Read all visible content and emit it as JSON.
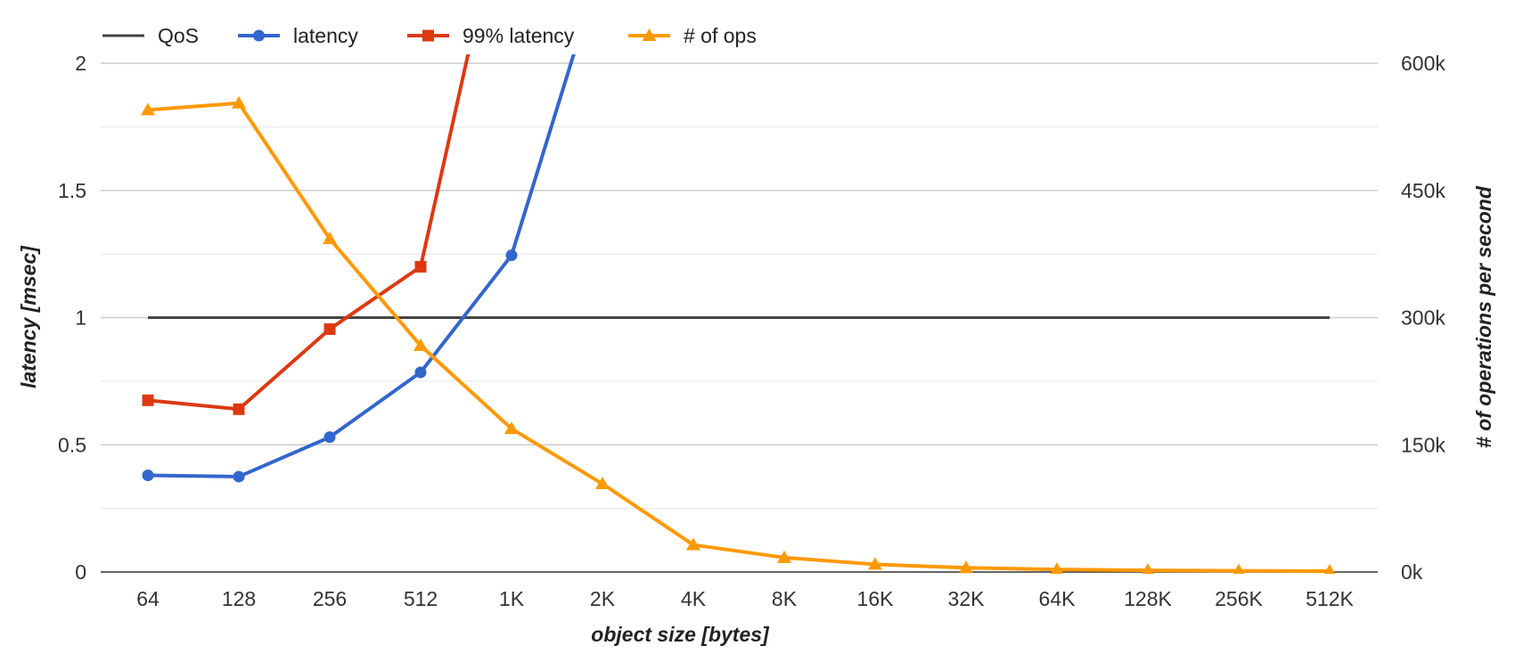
{
  "chart_data": {
    "type": "line",
    "title": "",
    "xlabel": "object size [bytes]",
    "ylabel_left": "latency [msec]",
    "ylabel_right": "# of operations per second",
    "categories": [
      "64",
      "128",
      "256",
      "512",
      "1K",
      "2K",
      "4K",
      "8K",
      "16K",
      "32K",
      "64K",
      "128K",
      "256K",
      "512K"
    ],
    "ylim_left": [
      0,
      2
    ],
    "yticks_left": [
      "0",
      "0.5",
      "1",
      "1.5",
      "2"
    ],
    "ylim_right": [
      0,
      600000
    ],
    "yticks_right": [
      "0k",
      "150k",
      "300k",
      "450k",
      "600k"
    ],
    "grid": true,
    "legend_position": "top-left",
    "series": [
      {
        "name": "QoS",
        "axis": "left",
        "marker": "none",
        "color": "#444444",
        "values": [
          1,
          1,
          1,
          1,
          1,
          1,
          1,
          1,
          1,
          1,
          1,
          1,
          1,
          1
        ]
      },
      {
        "name": "latency",
        "axis": "left",
        "marker": "circle",
        "color": "#3366cc",
        "values": [
          0.38,
          0.375,
          0.53,
          0.785,
          1.245,
          2.4,
          null,
          null,
          null,
          null,
          null,
          null,
          null,
          null
        ]
      },
      {
        "name": "99% latency",
        "axis": "left",
        "marker": "square",
        "color": "#dc3912",
        "values": [
          0.675,
          0.64,
          0.955,
          1.2,
          2.8,
          null,
          null,
          null,
          null,
          null,
          null,
          null,
          null,
          null
        ]
      },
      {
        "name": "# of ops",
        "axis": "right",
        "marker": "triangle",
        "color": "#ff9900",
        "values": [
          545000,
          553000,
          393000,
          267000,
          169000,
          104000,
          32000,
          17000,
          9000,
          5000,
          3000,
          2000,
          1500,
          1000
        ]
      }
    ]
  }
}
